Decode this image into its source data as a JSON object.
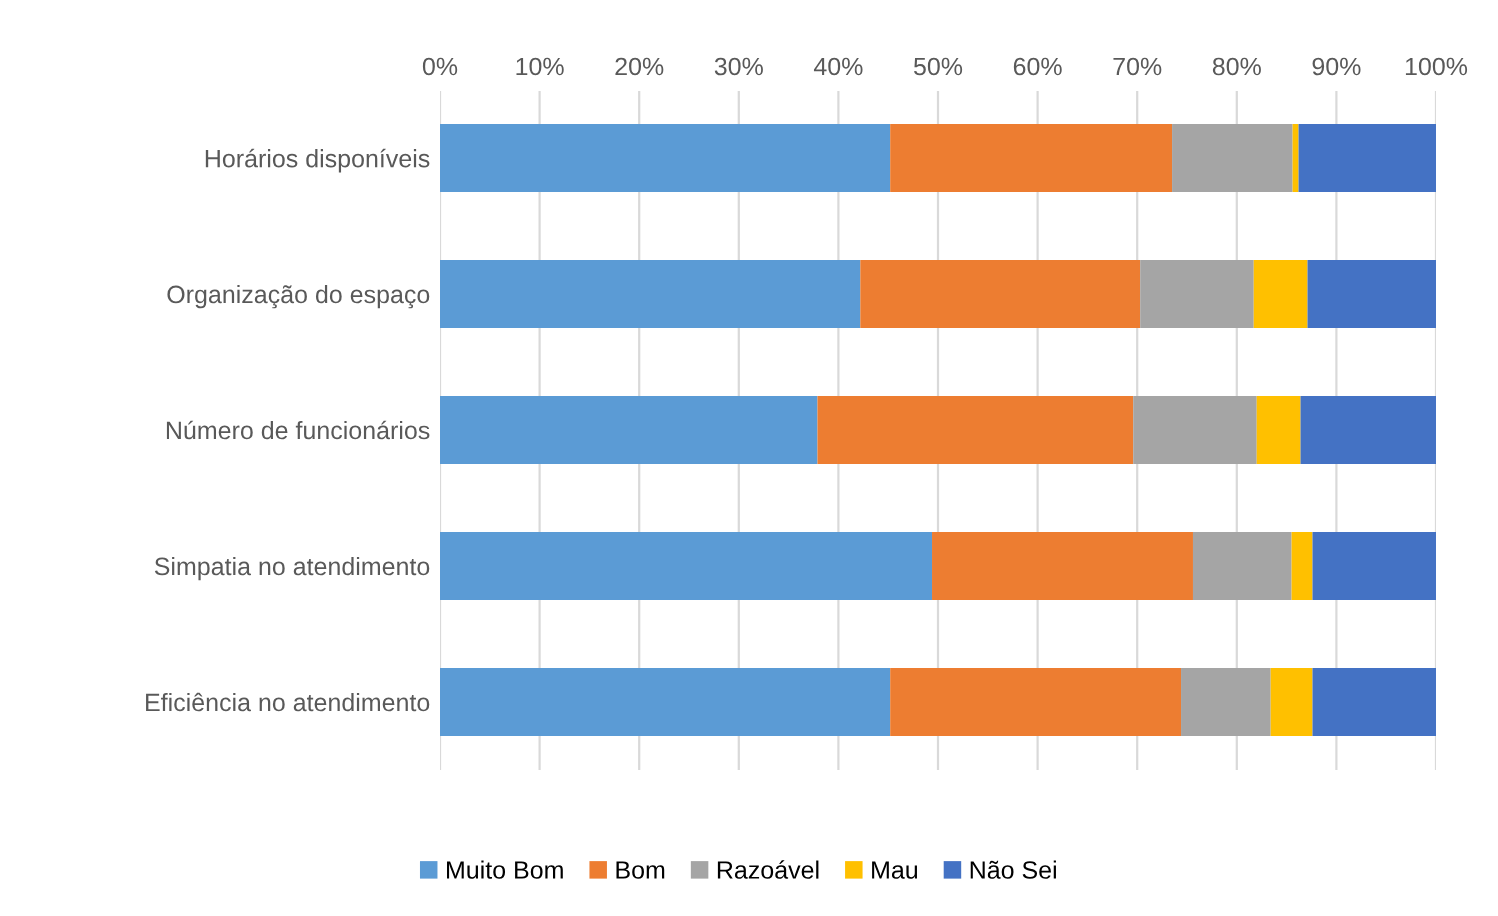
{
  "chart_data": {
    "type": "bar",
    "orientation": "horizontal",
    "stacked": true,
    "categories": [
      "Horários disponíveis",
      "Organização do espaço",
      "Número de funcionários",
      "Simpatia no atendimento",
      "Eficiência no atendimento"
    ],
    "series": [
      {
        "name": "Muito Bom",
        "color": "#5b9bd5",
        "values": [
          45.2,
          42.2,
          37.9,
          49.4,
          45.2
        ]
      },
      {
        "name": "Bom",
        "color": "#ed7d31",
        "values": [
          28.3,
          28.1,
          31.7,
          26.2,
          29.2
        ]
      },
      {
        "name": "Razoável",
        "color": "#a5a5a5",
        "values": [
          12.1,
          11.4,
          12.4,
          9.9,
          9.0
        ]
      },
      {
        "name": "Mau",
        "color": "#ffc000",
        "values": [
          0.6,
          5.4,
          4.4,
          2.1,
          4.2
        ]
      },
      {
        "name": "Não Sei",
        "color": "#4472c4",
        "values": [
          13.8,
          12.9,
          13.6,
          12.4,
          12.4
        ]
      }
    ],
    "xlim": [
      0,
      100
    ],
    "xticks": [
      {
        "value": 0,
        "label": "0%"
      },
      {
        "value": 10,
        "label": "10%"
      },
      {
        "value": 20,
        "label": "20%"
      },
      {
        "value": 30,
        "label": "30%"
      },
      {
        "value": 40,
        "label": "40%"
      },
      {
        "value": 50,
        "label": "50%"
      },
      {
        "value": 60,
        "label": "60%"
      },
      {
        "value": 70,
        "label": "70%"
      },
      {
        "value": 80,
        "label": "80%"
      },
      {
        "value": 90,
        "label": "90%"
      },
      {
        "value": 100,
        "label": "100%"
      }
    ],
    "grid": "x",
    "legend": "bottom"
  }
}
